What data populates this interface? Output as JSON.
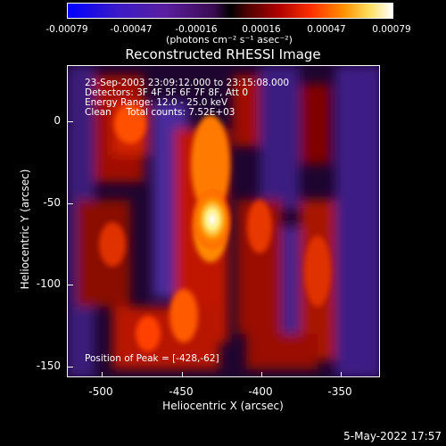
{
  "colorbar": {
    "ticks": [
      "-0.00079",
      "-0.00047",
      "-0.00016",
      "0.00016",
      "0.00047",
      "0.00079"
    ],
    "units": "(photons cm⁻² s⁻¹ asec⁻²)"
  },
  "title": "Reconstructed RHESSI Image",
  "info": {
    "time": "23-Sep-2003 23:09:12.000 to 23:15:08.000",
    "detectors": "Detectors: 3F 4F 5F 6F 7F 8F, Att 0",
    "energy": "Energy Range: 12.0 - 25.0 keV",
    "clean": "Clean     Total counts: 7.52E+03",
    "peak": "Position of Peak = [-428,-62]"
  },
  "axes": {
    "xlabel": "Heliocentric X (arcsec)",
    "ylabel": "Heliocentric Y (arcsec)",
    "xticks": [
      "-500",
      "-450",
      "-400",
      "-350"
    ],
    "yticks": [
      "0",
      "-50",
      "-100",
      "-150"
    ]
  },
  "footer": {
    "date": "5-May-2022 17:57"
  },
  "colors": {
    "background": "#000000",
    "text": "#ffffff"
  }
}
